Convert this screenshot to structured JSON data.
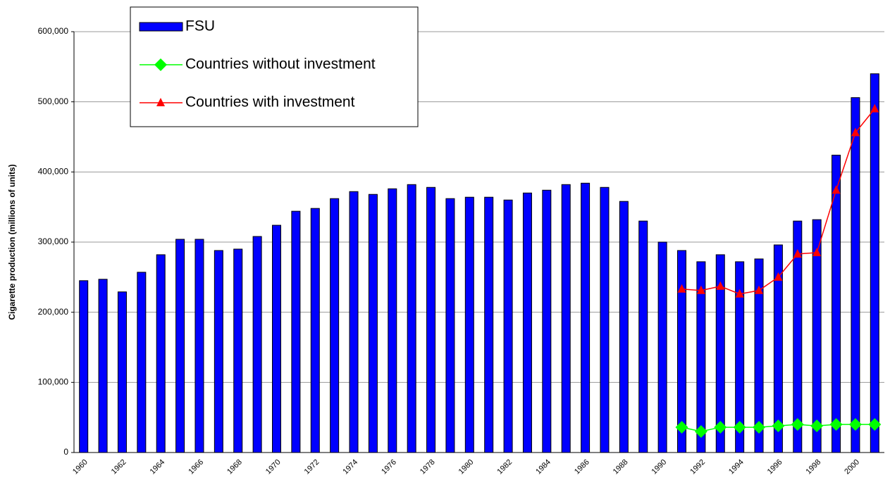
{
  "chart_data": {
    "type": "bar",
    "y_label": "Cigarette production (millions of units)",
    "categories": [
      "1960",
      null,
      "1962",
      null,
      "1964",
      null,
      "1966",
      null,
      "1968",
      null,
      "1970",
      null,
      "1972",
      null,
      "1974",
      null,
      "1976",
      null,
      "1978",
      null,
      "1980",
      null,
      "1982",
      null,
      "1984",
      null,
      "1986",
      null,
      "1988",
      null,
      "1990",
      null,
      "1992",
      null,
      "1994",
      null,
      "1996",
      null,
      "1998",
      null,
      "2000",
      null
    ],
    "series": [
      {
        "name": "FSU",
        "type": "bar",
        "color": "#0000ff",
        "values": [
          245000,
          247000,
          229000,
          257000,
          282000,
          304000,
          304000,
          288000,
          290000,
          308000,
          324000,
          344000,
          348000,
          362000,
          372000,
          368000,
          376000,
          382000,
          378000,
          362000,
          364000,
          364000,
          360000,
          370000,
          374000,
          382000,
          384000,
          378000,
          358000,
          330000,
          300000,
          288000,
          272000,
          282000,
          272000,
          276000,
          296000,
          330000,
          332000,
          424000,
          506000,
          540000
        ]
      },
      {
        "name": "Countries without investment",
        "type": "line",
        "marker": "diamond",
        "color": "#00ff00",
        "values": [
          null,
          null,
          null,
          null,
          null,
          null,
          null,
          null,
          null,
          null,
          null,
          null,
          null,
          null,
          null,
          null,
          null,
          null,
          null,
          null,
          null,
          null,
          null,
          null,
          null,
          null,
          null,
          null,
          null,
          null,
          null,
          36000,
          30000,
          36000,
          36000,
          36000,
          38000,
          40000,
          38000,
          40000,
          40000,
          40000
        ]
      },
      {
        "name": "Countries with investment",
        "type": "line",
        "marker": "triangle",
        "color": "#ff0000",
        "values": [
          null,
          null,
          null,
          null,
          null,
          null,
          null,
          null,
          null,
          null,
          null,
          null,
          null,
          null,
          null,
          null,
          null,
          null,
          null,
          null,
          null,
          null,
          null,
          null,
          null,
          null,
          null,
          null,
          null,
          null,
          null,
          233000,
          231000,
          237000,
          226000,
          231000,
          250000,
          283000,
          285000,
          374000,
          456000,
          490000
        ]
      }
    ],
    "ylim": [
      0,
      600000
    ],
    "yticks": [
      0,
      {
        "value": 100000,
        "label": "100,000"
      },
      {
        "value": 200000,
        "label": "200,000"
      },
      {
        "value": 300000,
        "label": "300,000"
      },
      {
        "value": 400000,
        "label": "400,000"
      },
      {
        "value": 500000,
        "label": "500,000"
      },
      {
        "value": 600000,
        "label": "600,000"
      }
    ],
    "grid": true,
    "legend": "top-left"
  }
}
